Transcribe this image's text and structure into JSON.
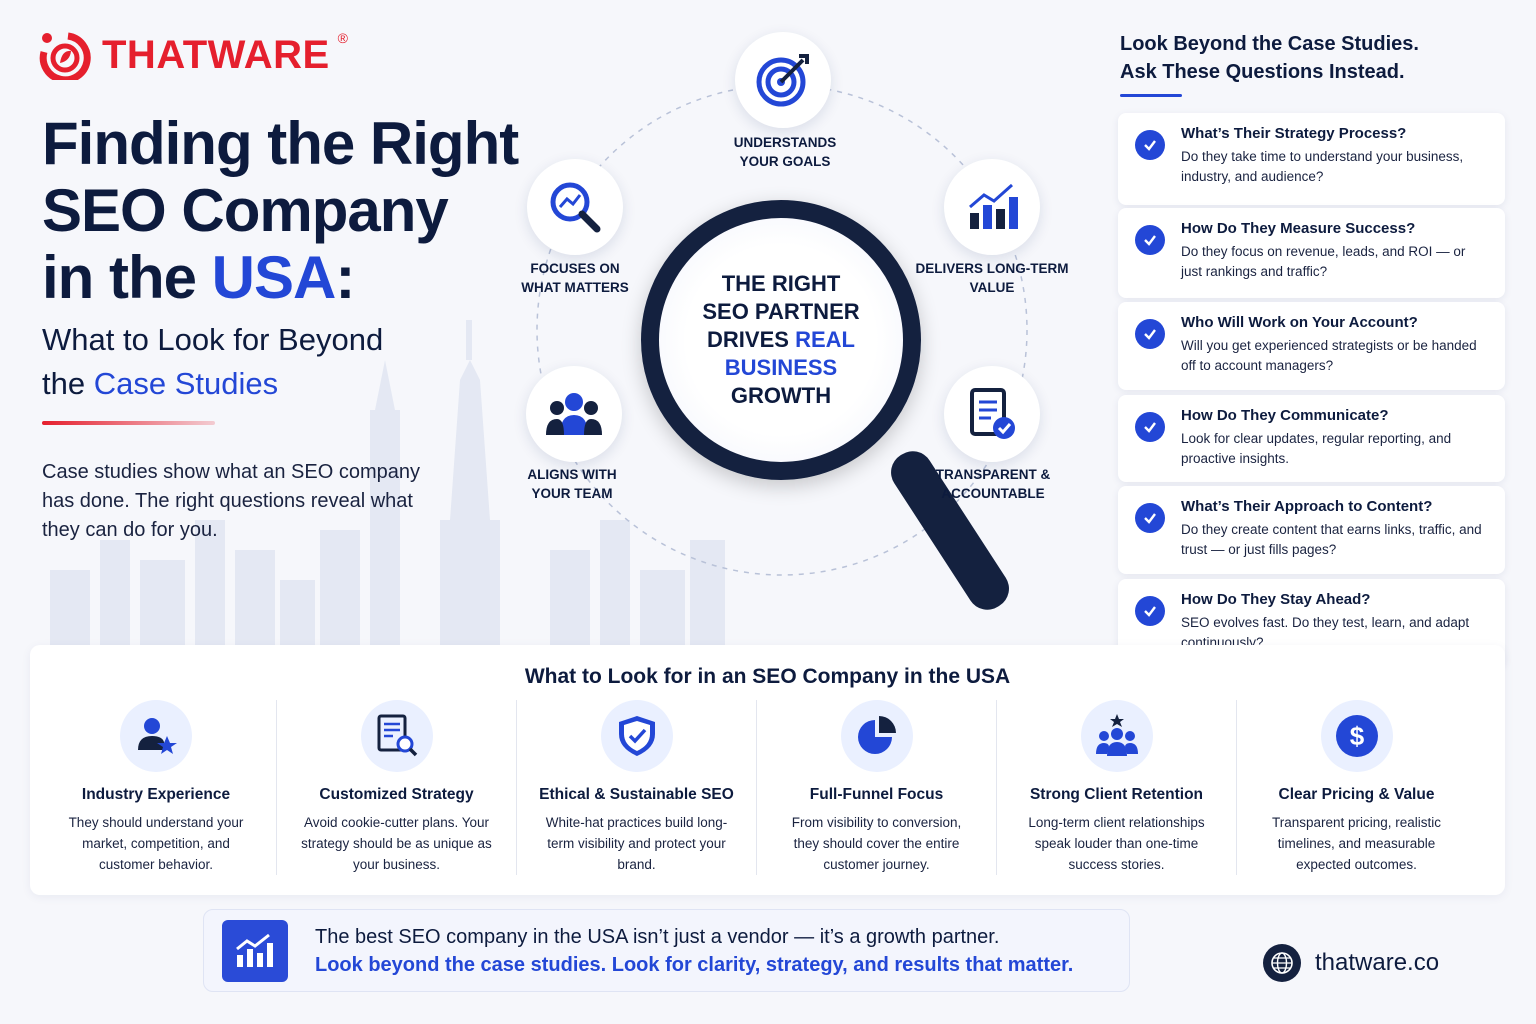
{
  "brand": {
    "name": "THATWARE",
    "reg": "®",
    "site": "thatware.co"
  },
  "colors": {
    "navy": "#14213f",
    "blue": "#2347d6",
    "red": "#e51f2d"
  },
  "hero": {
    "title_line1": "Finding the Right",
    "title_line2": "SEO Company",
    "title_line3_pre": "in the ",
    "title_line3_accent": "USA",
    "title_line3_post": ":",
    "subtitle_line1": "What to Look for Beyond",
    "subtitle_line2_pre": "the ",
    "subtitle_line2_accent": "Case Studies",
    "intro": "Case studies show what an SEO company has done. The right questions reveal what they can do for you."
  },
  "hub": {
    "line1": "THE RIGHT",
    "line2": "SEO PARTNER",
    "line3_pre": "DRIVES ",
    "line3_accent": "REAL",
    "line4": "BUSINESS",
    "line5": "GROWTH"
  },
  "nodes": [
    {
      "icon": "target-icon",
      "label_1": "UNDERSTANDS",
      "label_2": "YOUR GOALS"
    },
    {
      "icon": "search-analytics-icon",
      "label_1": "FOCUSES ON",
      "label_2": "WHAT MATTERS"
    },
    {
      "icon": "bar-chart-growth-icon",
      "label_1": "DELIVERS LONG-TERM",
      "label_2": "VALUE"
    },
    {
      "icon": "team-icon",
      "label_1": "ALIGNS WITH",
      "label_2": "YOUR TEAM"
    },
    {
      "icon": "document-check-icon",
      "label_1": "TRANSPARENT &",
      "label_2": "ACCOUNTABLE"
    }
  ],
  "questions": {
    "heading_1": "Look Beyond the Case Studies.",
    "heading_2": "Ask These Questions Instead.",
    "items": [
      {
        "q": "What’s Their Strategy Process?",
        "a": "Do they take time to understand your business, industry, and audience?"
      },
      {
        "q": "How Do They Measure Success?",
        "a": "Do they focus on revenue, leads, and ROI — or just rankings and traffic?"
      },
      {
        "q": "Who Will Work on Your Account?",
        "a": "Will you get experienced strategists or be handed off to account managers?"
      },
      {
        "q": "How Do They Communicate?",
        "a": "Look for clear updates, regular reporting, and proactive insights."
      },
      {
        "q": "What’s Their Approach to Content?",
        "a": "Do they create content that earns links, traffic, and trust — or just fills pages?"
      },
      {
        "q": "How Do They Stay Ahead?",
        "a": "SEO evolves fast. Do they test, learn, and adapt continuously?"
      }
    ]
  },
  "criteria": {
    "title": "What to Look for in an SEO Company in the USA",
    "items": [
      {
        "icon": "user-star-icon",
        "title": "Industry Experience",
        "desc": "They should understand your market, competition, and customer behavior."
      },
      {
        "icon": "document-search-icon",
        "title": "Customized Strategy",
        "desc": "Avoid cookie-cutter plans. Your strategy should be as unique as your business."
      },
      {
        "icon": "shield-check-icon",
        "title": "Ethical & Sustainable SEO",
        "desc": "White-hat practices build long-term visibility and protect your brand."
      },
      {
        "icon": "pie-chart-icon",
        "title": "Full-Funnel Focus",
        "desc": "From visibility to conversion, they should cover the entire customer journey."
      },
      {
        "icon": "team-star-icon",
        "title": "Strong Client Retention",
        "desc": "Long-term client relationships speak louder than one-time success stories."
      },
      {
        "icon": "dollar-icon",
        "title": "Clear Pricing & Value",
        "desc": "Transparent pricing, realistic timelines, and measurable expected outcomes."
      }
    ]
  },
  "banner": {
    "line1": "The best SEO company in the USA isn’t just a vendor — it’s a growth partner.",
    "line2": "Look beyond the case studies. Look for clarity, strategy, and results that matter."
  }
}
